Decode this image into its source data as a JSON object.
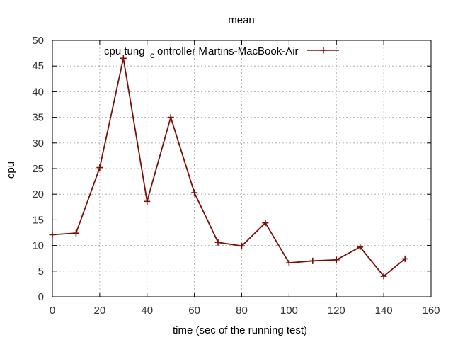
{
  "chart_data": {
    "type": "line",
    "title": "mean",
    "xlabel": "time (sec of the running test)",
    "ylabel": "cpu",
    "xlim": [
      0,
      160
    ],
    "ylim": [
      0,
      50
    ],
    "x_ticks": [
      0,
      20,
      40,
      60,
      80,
      100,
      120,
      140,
      160
    ],
    "y_ticks": [
      0,
      5,
      10,
      15,
      20,
      25,
      30,
      35,
      40,
      45,
      50
    ],
    "grid": true,
    "legend_position": "top",
    "legend": {
      "text_main": "cpu tung",
      "text_sub": "c",
      "text_rest": "ontroller M",
      "text_host": "artins-MacBook-Air"
    },
    "series": [
      {
        "name": "cpu tung_controller Martins-MacBook-Air",
        "color": "#7a1008",
        "marker": "plus",
        "x": [
          0,
          10,
          20,
          30,
          40,
          50,
          60,
          70,
          80,
          90,
          100,
          110,
          120,
          130,
          140,
          149
        ],
        "y": [
          12.1,
          12.4,
          25.2,
          46.5,
          18.6,
          35.0,
          20.3,
          10.6,
          9.9,
          14.4,
          6.6,
          7.0,
          7.2,
          9.7,
          4.0,
          7.4
        ]
      }
    ]
  }
}
